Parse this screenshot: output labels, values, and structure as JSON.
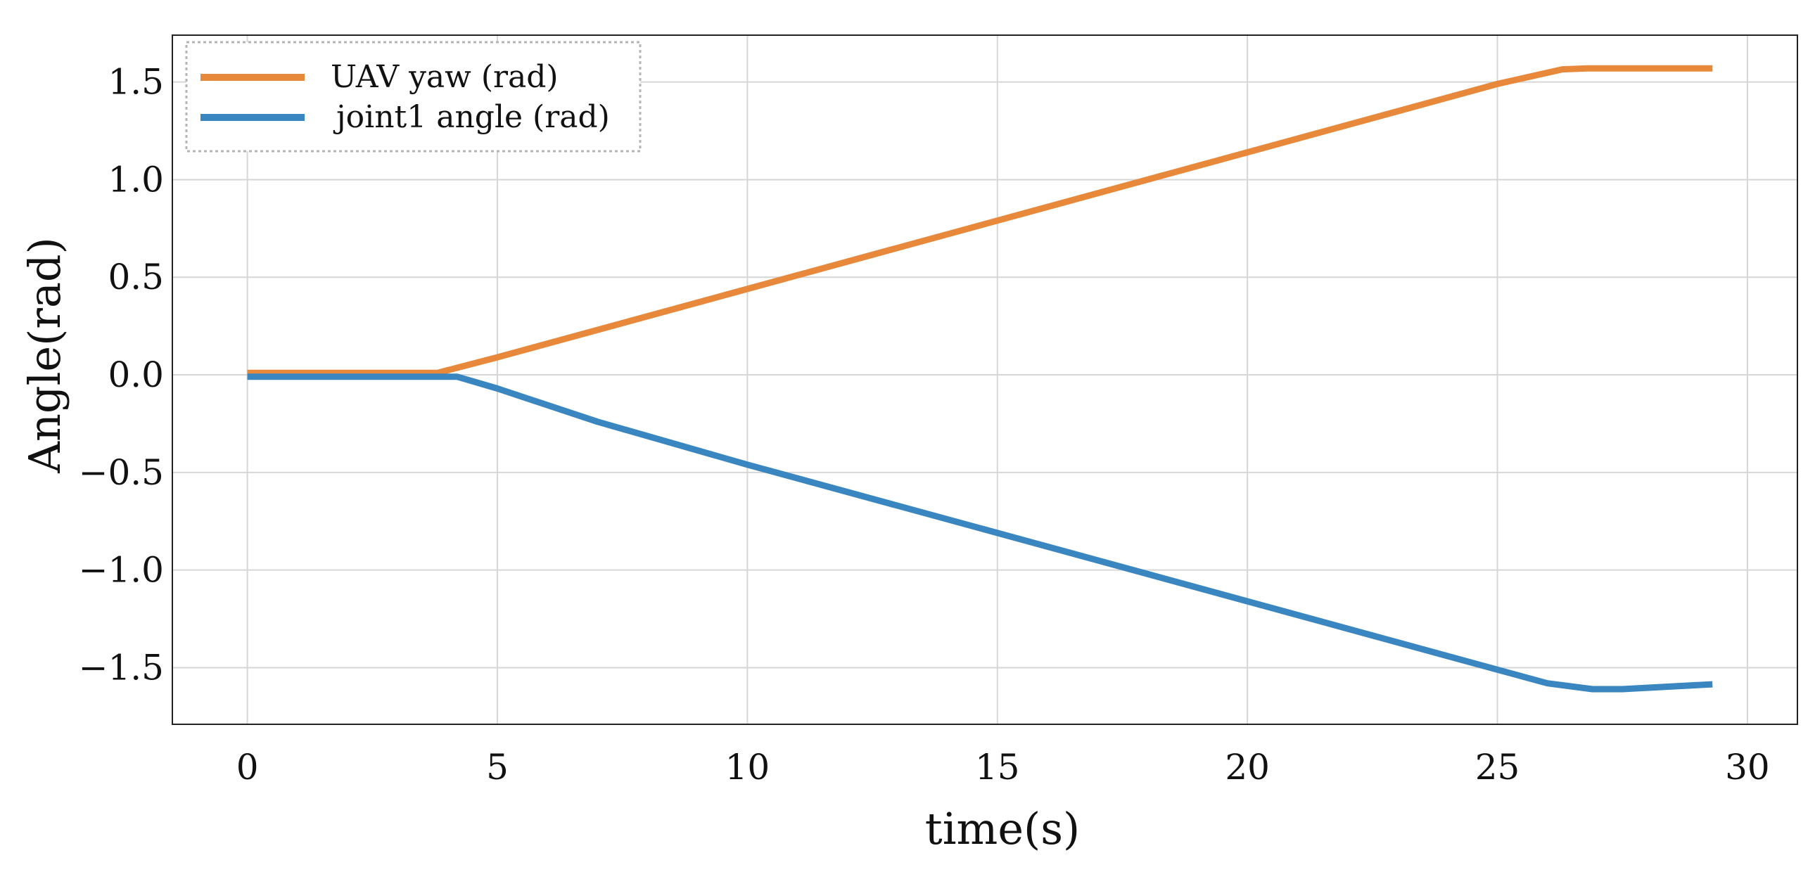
{
  "chart_data": {
    "type": "line",
    "title": "",
    "xlabel": "time(s)",
    "ylabel": "Angle(rad)",
    "xlim": [
      -1.5,
      31
    ],
    "ylim": [
      -1.79,
      1.74
    ],
    "xticks": [
      0,
      5,
      10,
      15,
      20,
      25,
      30
    ],
    "yticks": [
      1.5,
      1.0,
      0.5,
      0.0,
      -0.5,
      -1.0,
      -1.5
    ],
    "xtick_labels": [
      "0",
      "5",
      "10",
      "15",
      "20",
      "25",
      "30"
    ],
    "ytick_labels": [
      "1.5",
      "1.0",
      "0.5",
      "0.0",
      "−0.5",
      "−1.0",
      "−1.5"
    ],
    "grid": true,
    "legend_position": "top-left",
    "series": [
      {
        "name": "UAV yaw (rad)",
        "color": "#e8883a",
        "x": [
          0,
          3.8,
          5,
          10,
          15,
          20,
          25,
          26.3,
          26.8,
          29.3
        ],
        "y": [
          0.01,
          0.01,
          0.09,
          0.44,
          0.79,
          1.14,
          1.49,
          1.565,
          1.57,
          1.57
        ]
      },
      {
        "name": "joint1 angle (rad)",
        "color": "#3a86c1",
        "x": [
          0,
          4.2,
          5,
          7,
          10,
          15,
          20,
          25,
          26,
          26.9,
          27.5,
          29.3
        ],
        "y": [
          -0.01,
          -0.01,
          -0.07,
          -0.24,
          -0.46,
          -0.81,
          -1.16,
          -1.51,
          -1.58,
          -1.61,
          -1.61,
          -1.585
        ]
      }
    ]
  }
}
